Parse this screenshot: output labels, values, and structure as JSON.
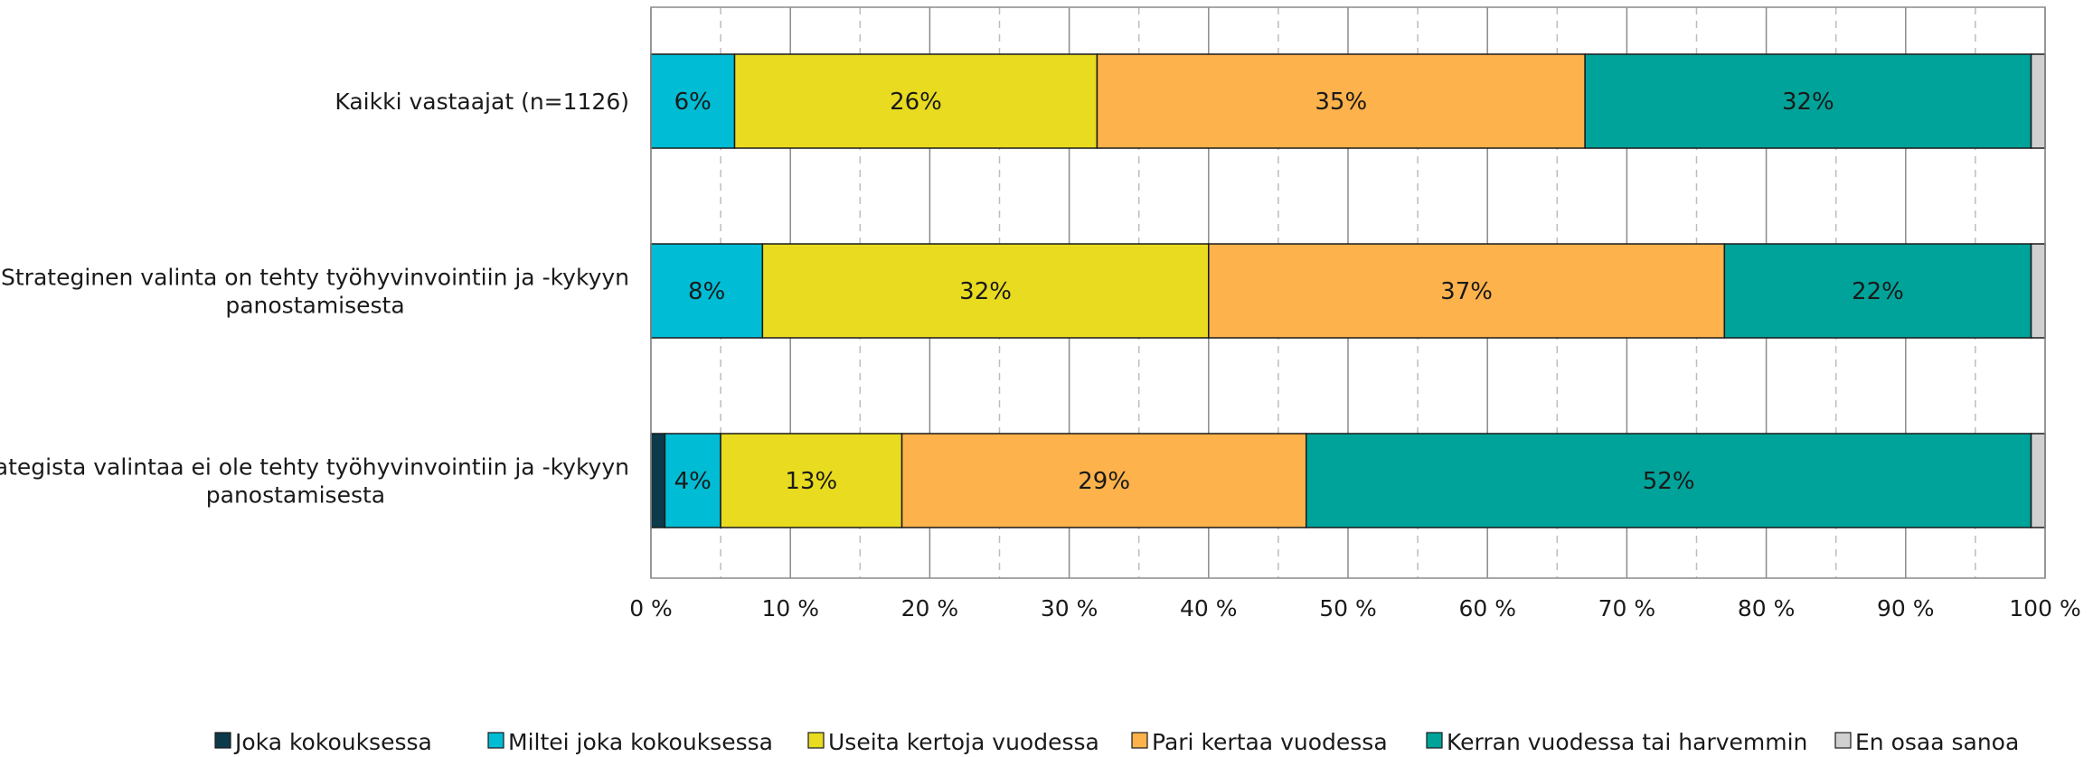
{
  "chart_data": {
    "type": "bar",
    "orientation": "horizontal",
    "stacked": true,
    "title": "",
    "xlabel": "",
    "ylabel": "",
    "xlim": [
      0,
      100
    ],
    "grid": true,
    "legend_position": "bottom",
    "categories": [
      [
        "Kaikki vastaajat (n=1126)"
      ],
      [
        "Strateginen valinta on tehty työhyvinvointiin ja -kykyyn",
        "panostamisesta"
      ],
      [
        "Strategista valintaa ei ole tehty työhyvinvointiin ja -kykyyn",
        "panostamisesta"
      ]
    ],
    "x_tick_labels": [
      "0 %",
      "10 %",
      "20 %",
      "30 %",
      "40 %",
      "50 %",
      "60 %",
      "70 %",
      "80 %",
      "90 %",
      "100 %"
    ],
    "series": [
      {
        "name": "Joka kokouksessa",
        "color": "#0c3a4a",
        "values": [
          0,
          0,
          1
        ],
        "labels": [
          "",
          "",
          ""
        ]
      },
      {
        "name": "Miltei joka kokouksessa",
        "color": "#00bcd4",
        "values": [
          6,
          8,
          4
        ],
        "labels": [
          "6%",
          "8%",
          "4%"
        ]
      },
      {
        "name": "Useita kertoja vuodessa",
        "color": "#e8db20",
        "values": [
          26,
          32,
          13
        ],
        "labels": [
          "26%",
          "32%",
          "13%"
        ]
      },
      {
        "name": "Pari kertaa vuodessa",
        "color": "#fdb24b",
        "values": [
          35,
          37,
          29
        ],
        "labels": [
          "35%",
          "37%",
          "29%"
        ]
      },
      {
        "name": "Kerran vuodessa tai harvemmin",
        "color": "#00a39a",
        "values": [
          32,
          22,
          52
        ],
        "labels": [
          "32%",
          "22%",
          "52%"
        ]
      },
      {
        "name": "En osaa sanoa",
        "color": "#d0d0d0",
        "values": [
          1,
          1,
          1
        ],
        "labels": [
          "",
          "",
          ""
        ]
      }
    ]
  }
}
